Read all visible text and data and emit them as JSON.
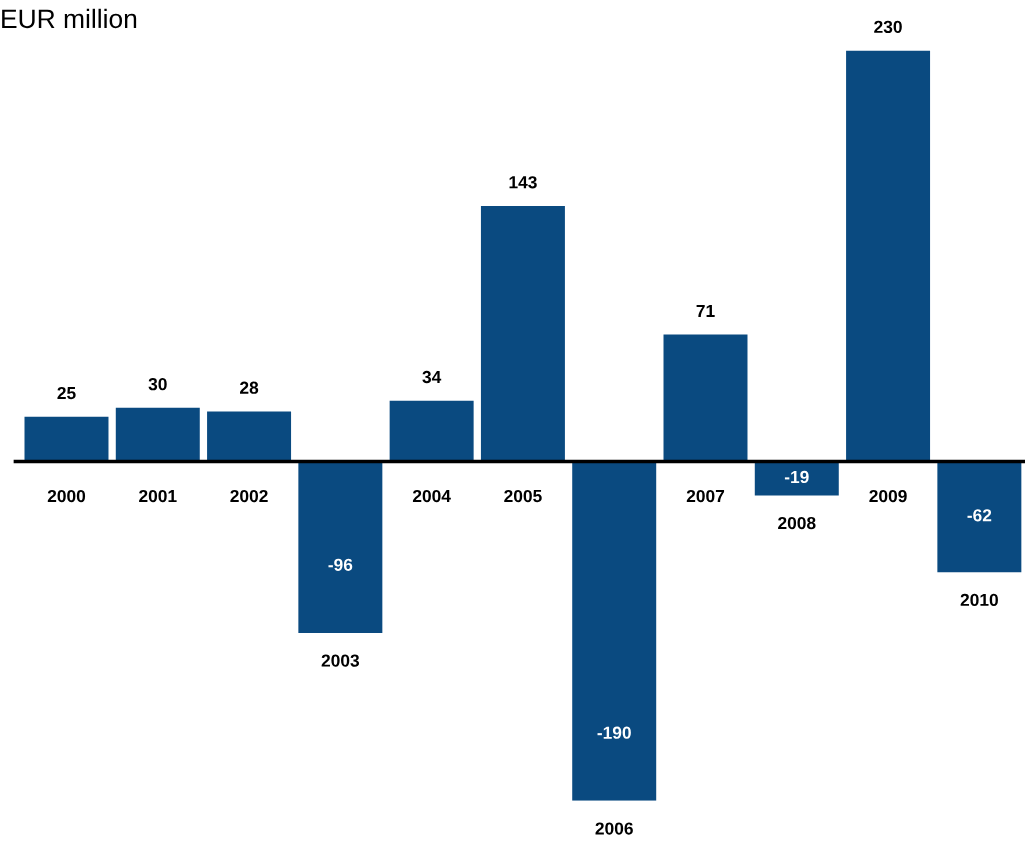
{
  "chart_data": {
    "type": "bar",
    "ylabel": "EUR million",
    "categories": [
      "2000",
      "2001",
      "2002",
      "2003",
      "2004",
      "2005",
      "2006",
      "2007",
      "2008",
      "2009",
      "2010"
    ],
    "values": [
      25,
      30,
      28,
      -96,
      34,
      143,
      -190,
      71,
      -19,
      230,
      -62
    ],
    "color": "#0a4a80",
    "data_labels": true,
    "tick_labels": "x"
  }
}
